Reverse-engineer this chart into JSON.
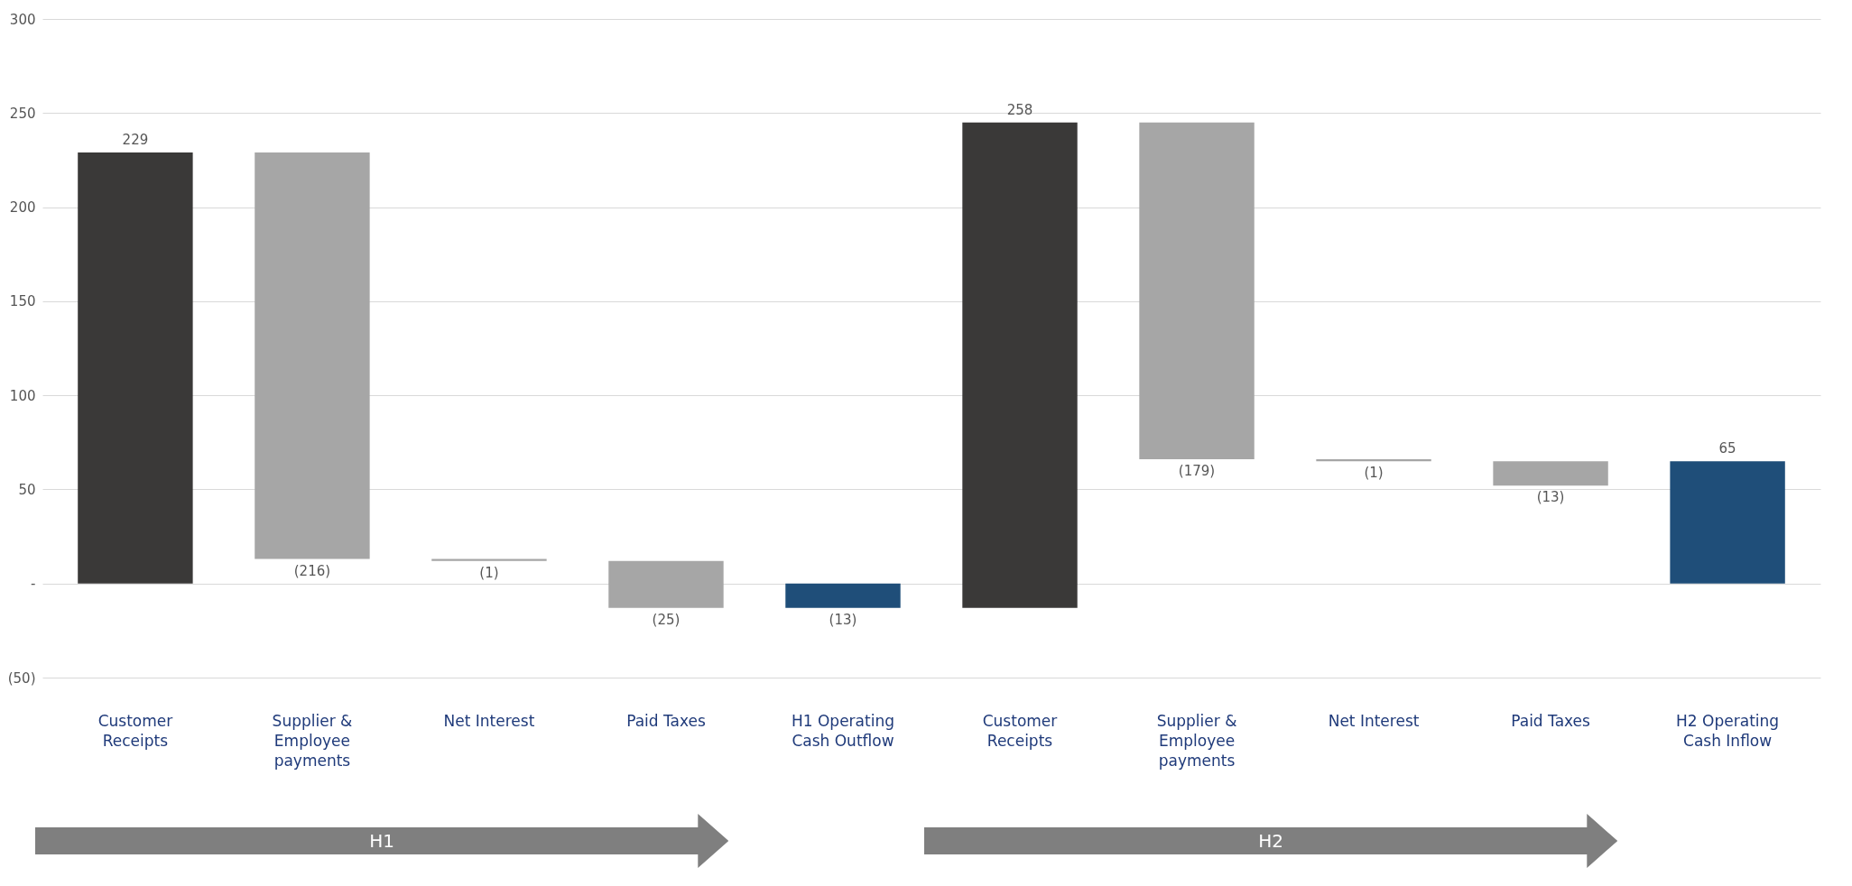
{
  "chart_data": {
    "type": "bar",
    "categories": [
      "Customer Receipts",
      "Supplier & Employee payments",
      "Net Interest",
      "Paid Taxes",
      "H1 Operating Cash Outflow",
      "Customer Receipts",
      "Supplier & Employee payments",
      "Net Interest",
      "Paid Taxes",
      "H2 Operating Cash Inflow"
    ],
    "values": [
      229,
      -216,
      -1,
      -25,
      -13,
      258,
      -179,
      -1,
      -13,
      65
    ],
    "base": [
      0,
      229,
      13,
      12,
      0,
      -13,
      245,
      66,
      65,
      0
    ],
    "value_labels": [
      "229",
      "(216)",
      "(1)",
      "(25)",
      "(13)",
      "258",
      "(179)",
      "(1)",
      "(13)",
      "65"
    ],
    "colors": [
      "#3a3938",
      "#a6a6a6",
      "#a6a6a6",
      "#a6a6a6",
      "#1f4e79",
      "#3a3938",
      "#a6a6a6",
      "#a6a6a6",
      "#a6a6a6",
      "#1f4e79"
    ],
    "ylim": [
      -50,
      300
    ],
    "yticks": [
      {
        "value": -50,
        "label": "(50)"
      },
      {
        "value": 0,
        "label": "-"
      },
      50,
      100,
      150,
      200,
      250,
      300
    ],
    "grid": "y",
    "annotations": [
      "H1",
      "H2"
    ]
  }
}
